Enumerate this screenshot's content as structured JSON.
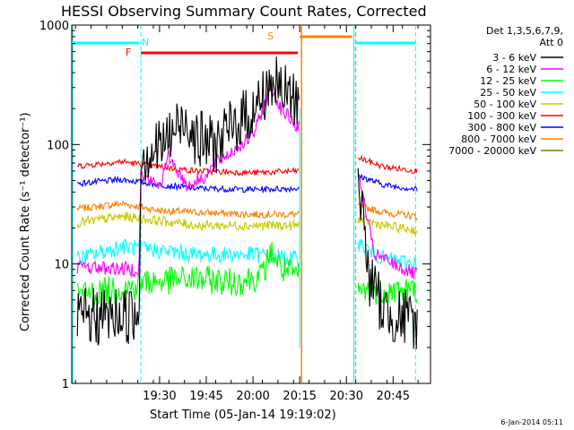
{
  "chart_data": {
    "type": "line",
    "title": "HESSI Observing Summary Count Rates, Corrected",
    "xlabel": "Start Time (05-Jan-14 19:19:02)",
    "ylabel": "Corrected Count Rate (s⁻¹ detector⁻¹)",
    "y_scale": "log",
    "ylim": [
      1,
      1000
    ],
    "y_ticks": [
      "1",
      "10",
      "100",
      "1000"
    ],
    "xlim_minutes": [
      19.03,
      20.95
    ],
    "x_ticks": [
      {
        "label": "19:30",
        "t": 19.5
      },
      {
        "label": "19:45",
        "t": 19.75
      },
      {
        "label": "20:00",
        "t": 20.0
      },
      {
        "label": "20:15",
        "t": 20.25
      },
      {
        "label": "20:30",
        "t": 20.5
      },
      {
        "label": "20:45",
        "t": 20.75
      }
    ],
    "legend": {
      "placement": "right",
      "header": [
        "Det 1,3,5,6,7,9,",
        "Att 0"
      ],
      "entries": [
        {
          "label": "3 - 6 keV",
          "color": "#000000"
        },
        {
          "label": "6 - 12 keV",
          "color": "#ff00ff"
        },
        {
          "label": "12 - 25 keV",
          "color": "#00ff00"
        },
        {
          "label": "25 - 50 keV",
          "color": "#00ffff"
        },
        {
          "label": "50 - 100 keV",
          "color": "#c8c800"
        },
        {
          "label": "100 - 300 keV",
          "color": "#ff0000"
        },
        {
          "label": "300 - 800 keV",
          "color": "#0000ff"
        },
        {
          "label": "800 - 7000 keV",
          "color": "#ff8000"
        },
        {
          "label": "7000 - 20000 keV",
          "color": "#808000"
        }
      ]
    },
    "flags": {
      "N_label": "N",
      "F_label": "F",
      "S_label": "S",
      "night_color": "#00ffff",
      "flare_color": "#ff0000",
      "saa_color": "#ff8000",
      "night_bars": [
        [
          19.03,
          19.39
        ],
        [
          20.55,
          20.87
        ]
      ],
      "flare_bar": [
        19.4,
        20.24
      ],
      "saa_bar": [
        20.25,
        20.53
      ],
      "night_edges": [
        19.4,
        20.54,
        20.87
      ],
      "saa_edges": [
        20.26,
        20.55
      ]
    },
    "gaps": [
      [
        20.25,
        20.56
      ]
    ],
    "series": [
      {
        "name": "3 - 6 keV",
        "color": "#000000",
        "noise": 0.25,
        "points": [
          [
            19.06,
            3.5
          ],
          [
            19.39,
            3.8
          ],
          [
            19.4,
            80
          ],
          [
            19.5,
            95
          ],
          [
            19.6,
            140
          ],
          [
            19.65,
            170
          ],
          [
            19.7,
            110
          ],
          [
            19.8,
            100
          ],
          [
            19.85,
            120
          ],
          [
            19.95,
            170
          ],
          [
            20.0,
            190
          ],
          [
            20.05,
            250
          ],
          [
            20.1,
            340
          ],
          [
            20.15,
            280
          ],
          [
            20.24,
            230
          ],
          [
            20.56,
            70
          ],
          [
            20.62,
            8
          ],
          [
            20.7,
            4
          ],
          [
            20.88,
            3.2
          ]
        ]
      },
      {
        "name": "6 - 12 keV",
        "color": "#ff00ff",
        "noise": 0.06,
        "points": [
          [
            19.06,
            9.5
          ],
          [
            19.39,
            9.0
          ],
          [
            19.4,
            55
          ],
          [
            19.5,
            45
          ],
          [
            19.55,
            80
          ],
          [
            19.6,
            60
          ],
          [
            19.65,
            45
          ],
          [
            19.75,
            55
          ],
          [
            19.8,
            70
          ],
          [
            19.9,
            90
          ],
          [
            20.0,
            120
          ],
          [
            20.1,
            300
          ],
          [
            20.15,
            200
          ],
          [
            20.24,
            140
          ],
          [
            20.56,
            60
          ],
          [
            20.65,
            12
          ],
          [
            20.88,
            8
          ]
        ]
      },
      {
        "name": "12 - 25 keV",
        "color": "#00ff00",
        "noise": 0.12,
        "points": [
          [
            19.06,
            5.5
          ],
          [
            19.39,
            6.5
          ],
          [
            19.4,
            7.0
          ],
          [
            19.7,
            7.5
          ],
          [
            19.9,
            7.0
          ],
          [
            20.05,
            8.0
          ],
          [
            20.1,
            13
          ],
          [
            20.15,
            9
          ],
          [
            20.24,
            8
          ],
          [
            20.56,
            6
          ],
          [
            20.88,
            6
          ]
        ]
      },
      {
        "name": "25 - 50 keV",
        "color": "#00ffff",
        "noise": 0.07,
        "points": [
          [
            19.06,
            11
          ],
          [
            19.3,
            14
          ],
          [
            19.5,
            13
          ],
          [
            19.7,
            12
          ],
          [
            20.0,
            12
          ],
          [
            20.24,
            11
          ],
          [
            20.56,
            15
          ],
          [
            20.7,
            11
          ],
          [
            20.88,
            10
          ]
        ]
      },
      {
        "name": "50 - 100 keV",
        "color": "#c8c800",
        "noise": 0.04,
        "points": [
          [
            19.06,
            22
          ],
          [
            19.3,
            25
          ],
          [
            19.5,
            23
          ],
          [
            19.7,
            21
          ],
          [
            20.0,
            21
          ],
          [
            20.24,
            21
          ],
          [
            20.56,
            24
          ],
          [
            20.7,
            21
          ],
          [
            20.88,
            19
          ]
        ]
      },
      {
        "name": "100 - 300 keV",
        "color": "#ff0000",
        "noise": 0.025,
        "points": [
          [
            19.06,
            66
          ],
          [
            19.3,
            72
          ],
          [
            19.5,
            65
          ],
          [
            19.7,
            60
          ],
          [
            20.0,
            58
          ],
          [
            20.24,
            60
          ],
          [
            20.56,
            78
          ],
          [
            20.7,
            65
          ],
          [
            20.88,
            60
          ]
        ]
      },
      {
        "name": "300 - 800 keV",
        "color": "#0000ff",
        "noise": 0.025,
        "points": [
          [
            19.06,
            47
          ],
          [
            19.3,
            51
          ],
          [
            19.5,
            46
          ],
          [
            19.7,
            43
          ],
          [
            20.0,
            42
          ],
          [
            20.24,
            43
          ],
          [
            20.56,
            55
          ],
          [
            20.7,
            46
          ],
          [
            20.88,
            42
          ]
        ]
      },
      {
        "name": "800 - 7000 keV",
        "color": "#ff8000",
        "noise": 0.03,
        "points": [
          [
            19.06,
            29
          ],
          [
            19.3,
            32
          ],
          [
            19.5,
            28
          ],
          [
            19.7,
            27
          ],
          [
            20.0,
            26
          ],
          [
            20.24,
            26
          ],
          [
            20.56,
            31
          ],
          [
            20.7,
            27
          ],
          [
            20.88,
            25
          ]
        ]
      }
    ]
  },
  "footer": {
    "timestamp": "6-Jan-2014 05:11"
  }
}
